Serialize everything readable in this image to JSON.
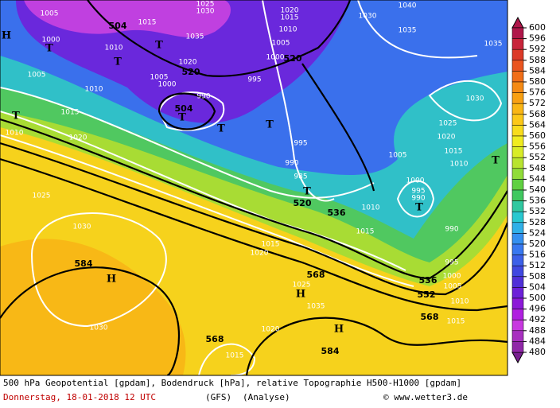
{
  "map": {
    "contour_labels": [
      "504",
      "520",
      "520",
      "504",
      "520",
      "536",
      "568",
      "536",
      "552",
      "568",
      "584",
      "584",
      "568"
    ],
    "pressure_labels": [
      "1005",
      "1000",
      "1010",
      "1015",
      "1025",
      "1030",
      "1035",
      "1020",
      "1005",
      "1000",
      "995",
      "990",
      "1005",
      "1010",
      "1015",
      "1020",
      "1010",
      "1025",
      "1030",
      "1020",
      "1015",
      "1010",
      "1005",
      "1000",
      "1030",
      "1035",
      "1040",
      "1035",
      "1030",
      "1025",
      "1020",
      "1015",
      "1010",
      "1005",
      "1000",
      "995",
      "990",
      "985",
      "995",
      "990",
      "1010",
      "1015",
      "1015",
      "1020",
      "990",
      "995",
      "1000",
      "1005",
      "1010",
      "1015",
      "1025",
      "1035",
      "1020",
      "1030",
      "1015"
    ],
    "markers": [
      "H",
      "T",
      "T",
      "T",
      "T",
      "T",
      "T",
      "T",
      "T",
      "T",
      "T",
      "H",
      "H",
      "H"
    ]
  },
  "colorbar": {
    "levels": [
      600,
      596,
      592,
      588,
      584,
      580,
      576,
      572,
      568,
      564,
      560,
      556,
      552,
      548,
      544,
      540,
      536,
      532,
      528,
      524,
      520,
      516,
      512,
      508,
      504,
      500,
      496,
      492,
      488,
      484,
      480
    ],
    "colors": [
      "#b0174a",
      "#c8243a",
      "#dc3a28",
      "#ea5520",
      "#f06e18",
      "#f58a14",
      "#f8a012",
      "#fab614",
      "#fcc818",
      "#f8dc1c",
      "#f0ec20",
      "#d8ec28",
      "#b8e430",
      "#90dc38",
      "#60d040",
      "#40c860",
      "#30c8a0",
      "#28c8d0",
      "#30b0e8",
      "#3490f0",
      "#3878f0",
      "#3c60e8",
      "#4048e0",
      "#5030d8",
      "#6c20d8",
      "#8c18d8",
      "#b020e0",
      "#c838e0",
      "#a830c0",
      "#9028a8",
      "#782090"
    ]
  },
  "footer": {
    "line1": "500 hPa Geopotential [gpdam], Bodendruck [hPa], relative Topographie H500-H1000 [gpdam]",
    "date": "Donnerstag, 18-01-2018  12 UTC",
    "model": "(GFS)",
    "run": "(Analyse)",
    "credit": "© www.wetter3.de"
  }
}
